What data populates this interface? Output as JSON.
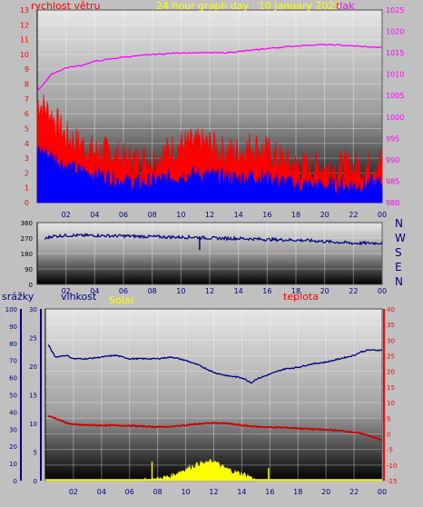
{
  "header": {
    "wind_label": "rychlost větru",
    "title": "24 hour graph day : 10 January 2025",
    "pressure_label": "tlak"
  },
  "direction": {
    "compass": [
      "N",
      "W",
      "S",
      "E",
      "N"
    ]
  },
  "bottom": {
    "rain_label": "srážky",
    "humidity_label": "vlhkost",
    "solar_label": "Solar",
    "temp_label": "teplota"
  },
  "colors": {
    "wind_gust": "#ff0000",
    "wind_avg": "#0000ff",
    "pressure": "#ff00ff",
    "direction": "#000080",
    "humidity": "#000080",
    "temperature": "#cc0000",
    "solar": "#ffff00",
    "axis_red": "#ff0000",
    "axis_blue": "#000080",
    "axis_magenta": "#ff00ff",
    "axis_yellow": "#ffff00"
  },
  "chart_data": [
    {
      "type": "line",
      "id": "wind-pressure",
      "x_ticks": [
        "02",
        "04",
        "06",
        "08",
        "10",
        "12",
        "14",
        "16",
        "18",
        "20",
        "22",
        "00"
      ],
      "y_left_ticks": [
        "0",
        "1",
        "2",
        "3",
        "4",
        "5",
        "6",
        "7",
        "8",
        "9",
        "10",
        "11",
        "12",
        "13"
      ],
      "y_right_ticks": [
        "980",
        "985",
        "990",
        "995",
        "1000",
        "1005",
        "1010",
        "1015",
        "1020",
        "1025"
      ],
      "ylim_left": [
        0,
        13
      ],
      "ylim_right": [
        980,
        1025
      ],
      "series": [
        {
          "name": "tlak",
          "axis": "right",
          "x": [
            0,
            1,
            2,
            3,
            4,
            5,
            6,
            7,
            8,
            9,
            10,
            11,
            12,
            13,
            14,
            15,
            16,
            17,
            18,
            19,
            20,
            21,
            22,
            23,
            24
          ],
          "values": [
            1006,
            1010,
            1011.5,
            1012,
            1013,
            1013.5,
            1014,
            1014.3,
            1014.6,
            1014.8,
            1015,
            1015,
            1015,
            1015,
            1015.3,
            1015.6,
            1016,
            1016.3,
            1016.6,
            1016.8,
            1016.9,
            1016.8,
            1016.6,
            1016.4,
            1016.2
          ]
        },
        {
          "name": "rychlost větru",
          "axis": "left",
          "x": [
            0,
            1,
            2,
            3,
            4,
            5,
            6,
            7,
            8,
            9,
            10,
            11,
            12,
            13,
            14,
            15,
            16,
            17,
            18,
            19,
            20,
            21,
            22,
            23,
            24
          ],
          "values": [
            6.5,
            5.5,
            4,
            3.5,
            3,
            3,
            2.5,
            2.5,
            2.5,
            3,
            3.5,
            3.5,
            3.5,
            3,
            3,
            3.5,
            3,
            2.5,
            2,
            2,
            2,
            2,
            2,
            2,
            2.5
          ]
        },
        {
          "name": "",
          "axis": "left",
          "x": [
            0,
            1,
            2,
            3,
            4,
            5,
            6,
            7,
            8,
            9,
            10,
            11,
            12,
            13,
            14,
            15,
            16,
            17,
            18,
            19,
            20,
            21,
            22,
            23,
            24
          ],
          "values": [
            3.5,
            3,
            2.3,
            2,
            1.8,
            1.6,
            1.3,
            1.2,
            1.3,
            1.5,
            1.7,
            1.8,
            1.7,
            1.6,
            1.5,
            1.7,
            1.5,
            1.3,
            1.1,
            1,
            1,
            1,
            1,
            1.1,
            1.2
          ]
        }
      ]
    },
    {
      "type": "line",
      "id": "wind-direction",
      "x_ticks": [
        "02",
        "04",
        "06",
        "08",
        "10",
        "12",
        "14",
        "16",
        "18",
        "20",
        "22",
        "00"
      ],
      "y_ticks": [
        "0",
        "90",
        "180",
        "270",
        "360"
      ],
      "ylim": [
        0,
        360
      ],
      "series": [
        {
          "name": "",
          "x": [
            0,
            1,
            2,
            3,
            4,
            5,
            6,
            7,
            8,
            9,
            10,
            11,
            12,
            13,
            14,
            15,
            16,
            17,
            18,
            19,
            20,
            21,
            22,
            23,
            24
          ],
          "values": [
            250,
            280,
            285,
            285,
            285,
            283,
            282,
            280,
            278,
            276,
            275,
            275,
            270,
            268,
            268,
            265,
            262,
            260,
            258,
            255,
            250,
            245,
            240,
            240,
            242
          ]
        }
      ]
    },
    {
      "type": "line",
      "id": "rain-humidity-solar-temp",
      "x_ticks": [
        "02",
        "04",
        "06",
        "08",
        "10",
        "12",
        "14",
        "16",
        "18",
        "20",
        "22",
        "00"
      ],
      "rain_ticks": [
        "0",
        "10",
        "20",
        "30",
        "40",
        "50",
        "60",
        "70",
        "80",
        "90",
        "100"
      ],
      "solar_ticks": [
        "0",
        "5",
        "10",
        "15",
        "20",
        "25",
        "30"
      ],
      "temp_ticks": [
        "-15",
        "-10",
        "-5",
        "0",
        "5",
        "10",
        "15",
        "20",
        "25",
        "30",
        "35",
        "40"
      ],
      "ylim_rain": [
        0,
        100
      ],
      "ylim_solar": [
        0,
        30
      ],
      "ylim_temp": [
        -15,
        40
      ],
      "series": [
        {
          "name": "vlhkost",
          "axis": "rain",
          "x": [
            0,
            0.7,
            1.5,
            2,
            3,
            4,
            5,
            6,
            7,
            8,
            9,
            10,
            11,
            12,
            13,
            14,
            14.7,
            15,
            16,
            17,
            18,
            19,
            20,
            21,
            22,
            22.5,
            23,
            24
          ],
          "values": [
            82,
            72,
            73,
            71,
            71,
            72,
            73,
            71,
            71,
            71,
            72,
            70,
            67,
            63,
            61,
            60,
            57,
            59,
            62,
            65,
            66,
            68,
            69,
            71,
            73,
            75,
            76,
            76
          ]
        },
        {
          "name": "teplota",
          "axis": "temp",
          "x": [
            0,
            0.7,
            1.5,
            2,
            3,
            4,
            5,
            6,
            7,
            8,
            9,
            10,
            11,
            12,
            13,
            14,
            15,
            16,
            17,
            18,
            19,
            20,
            21,
            22,
            23,
            24
          ],
          "values": [
            6,
            5,
            3.5,
            3,
            2.8,
            2.7,
            2.7,
            2.6,
            2.4,
            2.2,
            2.3,
            2.8,
            3.2,
            3.5,
            3.3,
            2.7,
            2.3,
            2.1,
            2,
            1.8,
            1.5,
            1.3,
            1,
            0.5,
            -0.5,
            -2
          ]
        },
        {
          "name": "Solar",
          "axis": "solar",
          "x": [
            0,
            7,
            8,
            9,
            9.5,
            10,
            10.5,
            11,
            11.5,
            12,
            12.5,
            13,
            13.5,
            14,
            14.5,
            15,
            24
          ],
          "values": [
            0,
            0,
            0.3,
            0.8,
            1.5,
            2,
            2.5,
            3,
            3,
            3.5,
            2.5,
            2,
            1.5,
            1.2,
            0.8,
            0,
            0
          ]
        },
        {
          "name": "srážky",
          "axis": "rain",
          "x": [
            0,
            24
          ],
          "values": [
            0,
            0
          ]
        }
      ]
    }
  ]
}
